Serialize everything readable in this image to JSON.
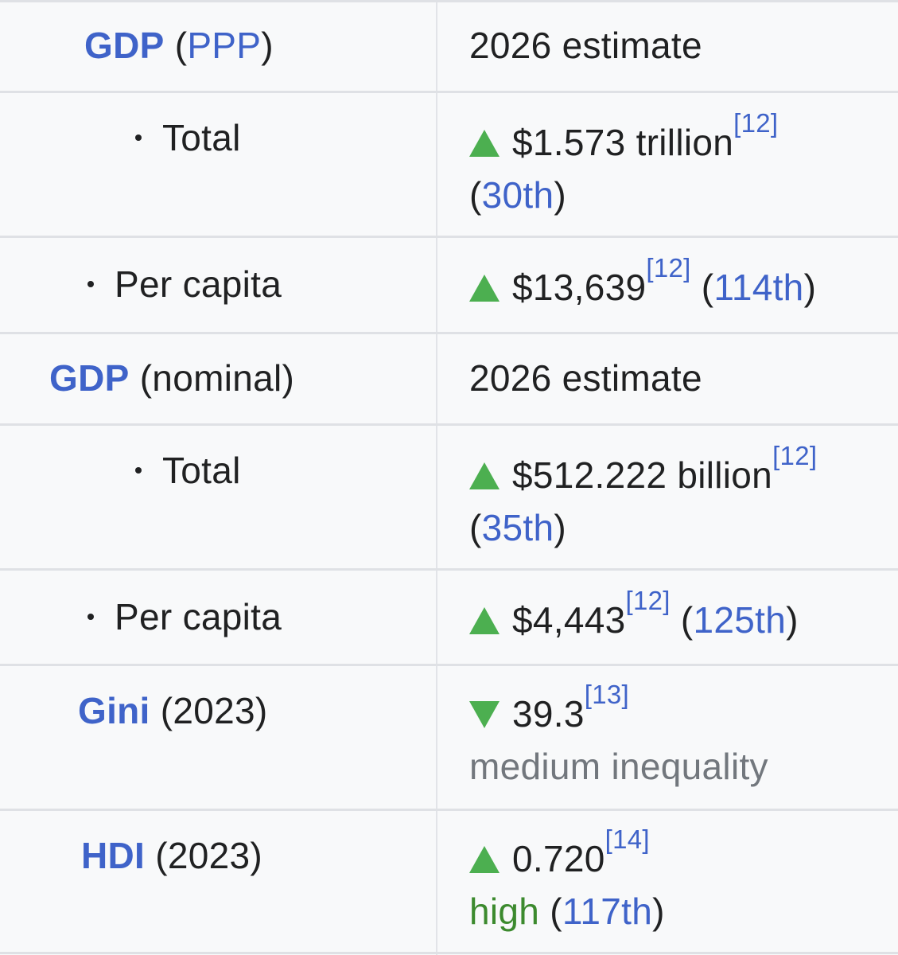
{
  "colors": {
    "link": "#3f63c9",
    "text": "#202122",
    "muted": "#72777d",
    "trend_arrow": "#4caf50",
    "high_text": "#3c8a2e",
    "background": "#f8f9fa"
  },
  "rows": {
    "gdp_ppp": {
      "label_link": "GDP",
      "label_open": "(",
      "label_sub_link": "PPP",
      "label_close": ")",
      "value": "2026 estimate"
    },
    "gdp_ppp_total": {
      "label": "Total",
      "trend_icon": "triangle-up-icon",
      "value": "$1.573 trillion",
      "ref": "[12]",
      "rank_open": "(",
      "rank": "30th",
      "rank_close": ")"
    },
    "gdp_ppp_per_capita": {
      "label": "Per capita",
      "trend_icon": "triangle-up-icon",
      "value": "$13,639",
      "ref": "[12]",
      "rank_open": "(",
      "rank": "114th",
      "rank_close": ")"
    },
    "gdp_nominal": {
      "label_link": "GDP",
      "label_rest": "(nominal)",
      "value": "2026 estimate"
    },
    "gdp_nominal_total": {
      "label": "Total",
      "trend_icon": "triangle-up-icon",
      "value": "$512.222 billion",
      "ref": "[12]",
      "rank_open": "(",
      "rank": "35th",
      "rank_close": ")"
    },
    "gdp_nominal_per_capita": {
      "label": "Per capita",
      "trend_icon": "triangle-up-icon",
      "value": "$4,443",
      "ref": "[12]",
      "rank_open": "(",
      "rank": "125th",
      "rank_close": ")"
    },
    "gini": {
      "label_link": "Gini",
      "label_rest": "(2023)",
      "trend_icon": "triangle-down-icon",
      "value": "39.3",
      "ref": "[13]",
      "note": "medium inequality"
    },
    "hdi": {
      "label_link": "HDI",
      "label_rest": "(2023)",
      "trend_icon": "triangle-up-icon",
      "value": "0.720",
      "ref": "[14]",
      "note": "high",
      "rank_open": "(",
      "rank": "117th",
      "rank_close": ")"
    }
  }
}
